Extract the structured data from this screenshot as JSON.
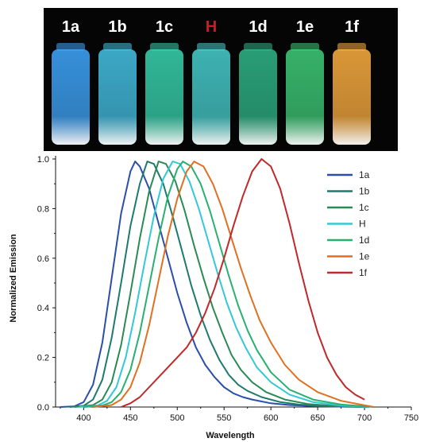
{
  "photo": {
    "vials": [
      {
        "label": "1a",
        "glow": "#3fa8ff",
        "label_color": "#ffffff"
      },
      {
        "label": "1b",
        "glow": "#45c4e8",
        "label_color": "#ffffff"
      },
      {
        "label": "1c",
        "glow": "#38d6b0",
        "label_color": "#ffffff"
      },
      {
        "label": "H",
        "glow": "#48d0d0",
        "label_color": "#c0202a"
      },
      {
        "label": "1d",
        "glow": "#2fb88a",
        "label_color": "#ffffff"
      },
      {
        "label": "1e",
        "glow": "#3fcf7a",
        "label_color": "#ffffff"
      },
      {
        "label": "1f",
        "glow": "#ffb040",
        "label_color": "#ffffff"
      }
    ]
  },
  "chart_data": {
    "type": "line",
    "title": "",
    "xlabel": "Wavelength",
    "ylabel": "Normalized Emission",
    "xlim": [
      370,
      750
    ],
    "ylim": [
      0,
      1.0
    ],
    "xticks": [
      400,
      450,
      500,
      550,
      600,
      650,
      700,
      750
    ],
    "yticks": [
      0.0,
      0.2,
      0.4,
      0.6,
      0.8,
      1.0
    ],
    "ytick_labels": [
      "0.0",
      "0.2",
      "0.4",
      "0.6",
      "0.8",
      "1.0"
    ],
    "legend_position": "top-right",
    "series": [
      {
        "name": "1a",
        "color": "#2b4ea8",
        "peak": 455,
        "range": [
          375,
          700
        ],
        "points": [
          [
            375,
            0.0
          ],
          [
            390,
            0.003
          ],
          [
            400,
            0.02
          ],
          [
            410,
            0.09
          ],
          [
            420,
            0.26
          ],
          [
            430,
            0.52
          ],
          [
            440,
            0.78
          ],
          [
            450,
            0.95
          ],
          [
            455,
            0.99
          ],
          [
            460,
            0.97
          ],
          [
            470,
            0.88
          ],
          [
            480,
            0.74
          ],
          [
            490,
            0.6
          ],
          [
            500,
            0.46
          ],
          [
            510,
            0.34
          ],
          [
            520,
            0.24
          ],
          [
            530,
            0.17
          ],
          [
            540,
            0.12
          ],
          [
            550,
            0.08
          ],
          [
            560,
            0.055
          ],
          [
            570,
            0.04
          ],
          [
            580,
            0.03
          ],
          [
            600,
            0.015
          ],
          [
            620,
            0.008
          ],
          [
            650,
            0.003
          ],
          [
            700,
            0.0
          ]
        ]
      },
      {
        "name": "1b",
        "color": "#1e7a6e",
        "peak": 468,
        "range": [
          385,
          705
        ],
        "points": [
          [
            385,
            0.0
          ],
          [
            400,
            0.005
          ],
          [
            410,
            0.03
          ],
          [
            420,
            0.11
          ],
          [
            430,
            0.28
          ],
          [
            440,
            0.5
          ],
          [
            450,
            0.73
          ],
          [
            460,
            0.9
          ],
          [
            468,
            0.99
          ],
          [
            475,
            0.98
          ],
          [
            485,
            0.9
          ],
          [
            495,
            0.77
          ],
          [
            505,
            0.63
          ],
          [
            515,
            0.49
          ],
          [
            525,
            0.37
          ],
          [
            535,
            0.27
          ],
          [
            545,
            0.19
          ],
          [
            555,
            0.13
          ],
          [
            565,
            0.09
          ],
          [
            575,
            0.065
          ],
          [
            590,
            0.04
          ],
          [
            610,
            0.02
          ],
          [
            630,
            0.01
          ],
          [
            660,
            0.004
          ],
          [
            705,
            0.0
          ]
        ]
      },
      {
        "name": "1c",
        "color": "#2a8a55",
        "peak": 480,
        "range": [
          390,
          705
        ],
        "points": [
          [
            390,
            0.0
          ],
          [
            410,
            0.008
          ],
          [
            420,
            0.03
          ],
          [
            430,
            0.1
          ],
          [
            440,
            0.25
          ],
          [
            450,
            0.46
          ],
          [
            460,
            0.68
          ],
          [
            470,
            0.87
          ],
          [
            480,
            0.99
          ],
          [
            488,
            0.98
          ],
          [
            498,
            0.91
          ],
          [
            508,
            0.79
          ],
          [
            518,
            0.65
          ],
          [
            528,
            0.52
          ],
          [
            538,
            0.4
          ],
          [
            548,
            0.3
          ],
          [
            558,
            0.21
          ],
          [
            568,
            0.15
          ],
          [
            580,
            0.1
          ],
          [
            595,
            0.06
          ],
          [
            615,
            0.03
          ],
          [
            640,
            0.012
          ],
          [
            670,
            0.004
          ],
          [
            705,
            0.0
          ]
        ]
      },
      {
        "name": "H",
        "color": "#32c8d8",
        "peak": 495,
        "range": [
          395,
          705
        ],
        "points": [
          [
            395,
            0.0
          ],
          [
            415,
            0.006
          ],
          [
            425,
            0.025
          ],
          [
            435,
            0.08
          ],
          [
            445,
            0.2
          ],
          [
            455,
            0.38
          ],
          [
            465,
            0.58
          ],
          [
            475,
            0.77
          ],
          [
            485,
            0.92
          ],
          [
            495,
            0.99
          ],
          [
            503,
            0.98
          ],
          [
            513,
            0.91
          ],
          [
            523,
            0.8
          ],
          [
            533,
            0.67
          ],
          [
            543,
            0.54
          ],
          [
            553,
            0.42
          ],
          [
            563,
            0.32
          ],
          [
            573,
            0.24
          ],
          [
            585,
            0.16
          ],
          [
            600,
            0.1
          ],
          [
            620,
            0.05
          ],
          [
            645,
            0.02
          ],
          [
            675,
            0.006
          ],
          [
            705,
            0.0
          ]
        ]
      },
      {
        "name": "1d",
        "color": "#28b070",
        "peak": 505,
        "range": [
          400,
          710
        ],
        "points": [
          [
            400,
            0.0
          ],
          [
            420,
            0.006
          ],
          [
            430,
            0.02
          ],
          [
            440,
            0.06
          ],
          [
            450,
            0.15
          ],
          [
            460,
            0.3
          ],
          [
            470,
            0.49
          ],
          [
            480,
            0.68
          ],
          [
            490,
            0.85
          ],
          [
            500,
            0.96
          ],
          [
            506,
            0.99
          ],
          [
            515,
            0.97
          ],
          [
            525,
            0.9
          ],
          [
            535,
            0.79
          ],
          [
            545,
            0.66
          ],
          [
            555,
            0.53
          ],
          [
            565,
            0.41
          ],
          [
            575,
            0.31
          ],
          [
            585,
            0.23
          ],
          [
            600,
            0.14
          ],
          [
            620,
            0.07
          ],
          [
            645,
            0.03
          ],
          [
            675,
            0.01
          ],
          [
            710,
            0.0
          ]
        ]
      },
      {
        "name": "1e",
        "color": "#e07020",
        "peak": 518,
        "range": [
          410,
          710
        ],
        "points": [
          [
            410,
            0.0
          ],
          [
            430,
            0.008
          ],
          [
            440,
            0.03
          ],
          [
            450,
            0.08
          ],
          [
            460,
            0.18
          ],
          [
            470,
            0.33
          ],
          [
            480,
            0.51
          ],
          [
            490,
            0.69
          ],
          [
            500,
            0.84
          ],
          [
            510,
            0.95
          ],
          [
            518,
            0.99
          ],
          [
            528,
            0.97
          ],
          [
            538,
            0.9
          ],
          [
            548,
            0.8
          ],
          [
            558,
            0.68
          ],
          [
            568,
            0.56
          ],
          [
            578,
            0.45
          ],
          [
            588,
            0.35
          ],
          [
            600,
            0.26
          ],
          [
            615,
            0.17
          ],
          [
            630,
            0.11
          ],
          [
            650,
            0.06
          ],
          [
            675,
            0.025
          ],
          [
            710,
            0.0
          ]
        ]
      },
      {
        "name": "1f",
        "color": "#c0282a",
        "peak": 590,
        "range": [
          440,
          700
        ],
        "points": [
          [
            440,
            0.0
          ],
          [
            450,
            0.015
          ],
          [
            460,
            0.04
          ],
          [
            470,
            0.08
          ],
          [
            480,
            0.12
          ],
          [
            490,
            0.16
          ],
          [
            500,
            0.2
          ],
          [
            510,
            0.24
          ],
          [
            520,
            0.3
          ],
          [
            530,
            0.38
          ],
          [
            540,
            0.48
          ],
          [
            550,
            0.6
          ],
          [
            560,
            0.73
          ],
          [
            570,
            0.85
          ],
          [
            580,
            0.95
          ],
          [
            590,
            1.0
          ],
          [
            600,
            0.97
          ],
          [
            610,
            0.88
          ],
          [
            620,
            0.74
          ],
          [
            630,
            0.58
          ],
          [
            640,
            0.43
          ],
          [
            650,
            0.3
          ],
          [
            660,
            0.2
          ],
          [
            670,
            0.13
          ],
          [
            680,
            0.08
          ],
          [
            690,
            0.05
          ],
          [
            700,
            0.03
          ]
        ]
      }
    ]
  }
}
